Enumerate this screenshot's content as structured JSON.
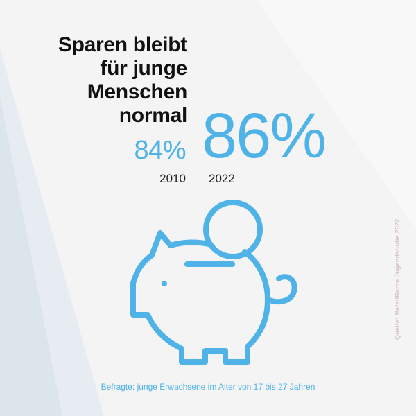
{
  "headline_lines": [
    "Sparen bleibt",
    "für junge",
    "Menschen",
    "normal"
  ],
  "stat_2010": {
    "value": "84%",
    "year": "2010"
  },
  "stat_2022": {
    "value": "86%",
    "year": "2022"
  },
  "footnote": "Befragte: junge Erwachsene im Alter von 17 bis 27 Jahren",
  "source": "Quelle: MetallRente Jugendstudie 2022",
  "icon": "piggy-bank-icon",
  "colors": {
    "accent": "#4fb3e8",
    "text": "#111111",
    "background": "#f4f4f4",
    "source_text": "#d6c1c4"
  }
}
